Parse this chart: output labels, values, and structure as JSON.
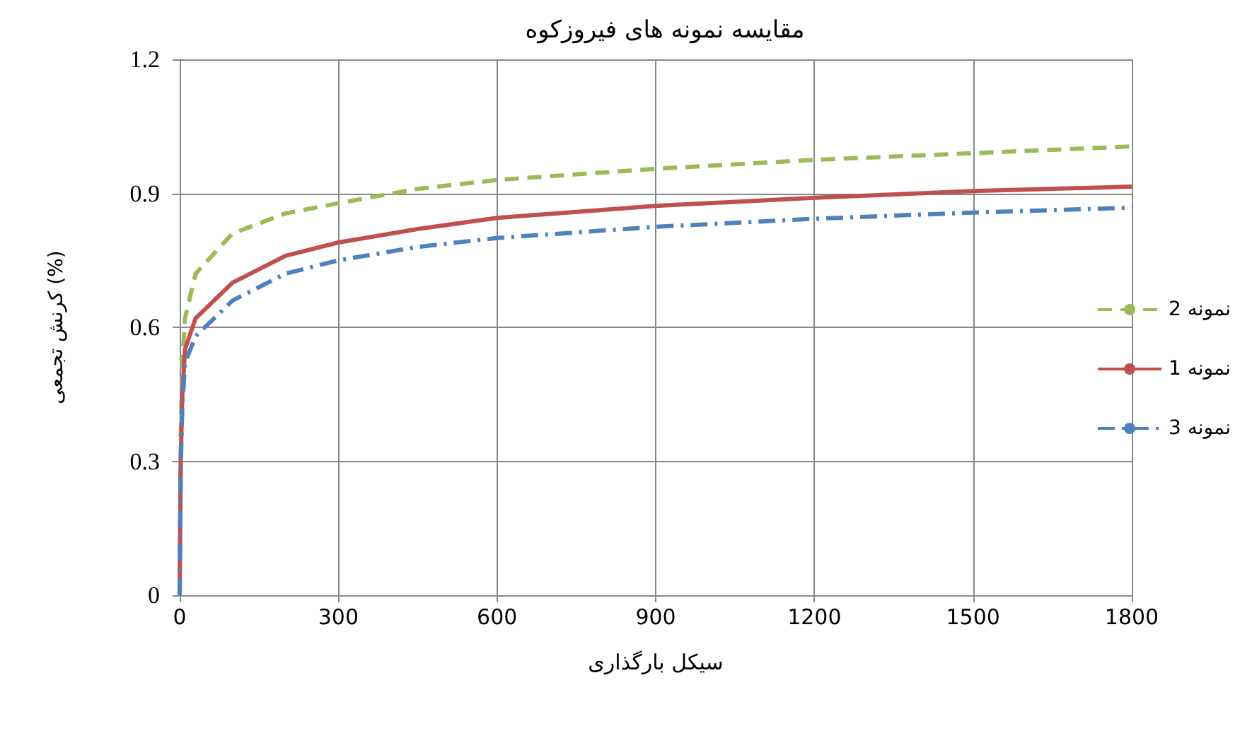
{
  "chart_data": {
    "type": "line",
    "title": "مقایسه نمونه های فیروزکوه",
    "xlabel": "سیکل بارگذاری",
    "ylabel": "کرنش تجمعی (%)",
    "xlim": [
      0,
      1800
    ],
    "xticks": [
      0,
      300,
      600,
      900,
      1200,
      1500,
      1800
    ],
    "ylim": [
      0,
      1.2
    ],
    "yticks": [
      0,
      0.3,
      0.6,
      0.9,
      1.2
    ],
    "grid": true,
    "legend": "right",
    "marker": "none",
    "series": [
      {
        "name": "نمونه 2",
        "color": "#9bbb59",
        "line_style": "dashed",
        "x": [
          0,
          2,
          5,
          10,
          30,
          100,
          200,
          300,
          450,
          600,
          900,
          1200,
          1500,
          1800
        ],
        "values": [
          0,
          0.35,
          0.52,
          0.62,
          0.72,
          0.81,
          0.855,
          0.878,
          0.91,
          0.93,
          0.955,
          0.975,
          0.99,
          1.005
        ]
      },
      {
        "name": "نمونه 1",
        "color": "#c0504d",
        "line_style": "solid",
        "x": [
          0,
          2,
          5,
          10,
          30,
          100,
          200,
          300,
          450,
          600,
          900,
          1200,
          1500,
          1800
        ],
        "values": [
          0,
          0.3,
          0.45,
          0.55,
          0.62,
          0.7,
          0.76,
          0.79,
          0.82,
          0.845,
          0.872,
          0.89,
          0.905,
          0.915
        ]
      },
      {
        "name": "نمونه 3",
        "color": "#4f81bd",
        "line_style": "dashdot",
        "x": [
          0,
          2,
          5,
          10,
          30,
          100,
          200,
          300,
          450,
          600,
          900,
          1200,
          1500,
          1800
        ],
        "values": [
          0,
          0.28,
          0.42,
          0.52,
          0.58,
          0.66,
          0.72,
          0.75,
          0.78,
          0.8,
          0.825,
          0.843,
          0.857,
          0.868
        ]
      }
    ]
  }
}
